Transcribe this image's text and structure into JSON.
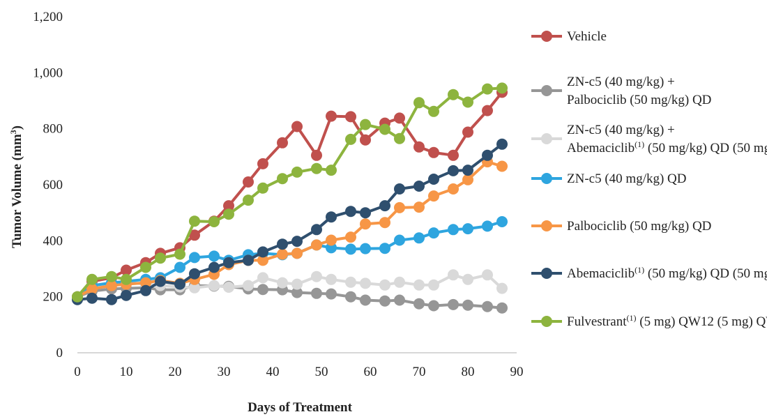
{
  "chart_data": {
    "type": "line",
    "title": "",
    "xlabel": "Days of  Treatment",
    "ylabel": "Tumor Volume (mm",
    "ylabel_superscript": "3",
    "ylabel_suffix": ")",
    "xlim": [
      0,
      90
    ],
    "ylim": [
      0,
      1200
    ],
    "xticks": [
      "0",
      "10",
      "20",
      "30",
      "40",
      "50",
      "60",
      "70",
      "80",
      "90"
    ],
    "yticks": [
      "0",
      "200",
      "400",
      "600",
      "800",
      "1,000",
      "1,200"
    ],
    "grid": false,
    "legend_position": "right",
    "series": [
      {
        "name_lines": [
          [
            "Vehicle"
          ]
        ],
        "color": "#C0504D",
        "x": [
          0,
          3,
          7,
          10,
          14,
          17,
          21,
          24,
          28,
          31,
          35,
          38,
          42,
          45,
          49,
          52,
          56,
          59,
          63,
          66,
          70,
          73,
          77,
          80,
          84,
          87
        ],
        "values": [
          200,
          255,
          268,
          295,
          322,
          355,
          375,
          420,
          470,
          525,
          610,
          675,
          750,
          808,
          705,
          845,
          843,
          760,
          820,
          838,
          735,
          715,
          705,
          788,
          865,
          930
        ]
      },
      {
        "name_lines": [
          [
            "ZN-c5 (40 mg/kg) +"
          ],
          [
            "Palbociclib (50 mg/kg) QD"
          ]
        ],
        "color": "#969696",
        "x": [
          0,
          3,
          7,
          10,
          14,
          17,
          21,
          24,
          28,
          31,
          35,
          38,
          42,
          45,
          49,
          52,
          56,
          59,
          63,
          66,
          70,
          73,
          77,
          80,
          84,
          87
        ],
        "values": [
          200,
          220,
          228,
          230,
          232,
          225,
          225,
          240,
          238,
          237,
          228,
          226,
          225,
          215,
          212,
          210,
          200,
          188,
          185,
          188,
          175,
          168,
          172,
          170,
          165,
          160
        ]
      },
      {
        "name_lines": [
          [
            "ZN-c5 (40 mg/kg) +"
          ],
          [
            "Abemaciclib",
            {
              "sup": "(1)"
            },
            " (50 mg/kg) QD"
          ]
        ],
        "color": "#D9D9D9",
        "x": [
          0,
          3,
          7,
          10,
          14,
          17,
          21,
          24,
          28,
          31,
          35,
          38,
          42,
          45,
          49,
          52,
          56,
          59,
          63,
          66,
          70,
          73,
          77,
          80,
          84,
          87
        ],
        "values": [
          200,
          230,
          248,
          252,
          245,
          240,
          235,
          232,
          240,
          234,
          240,
          268,
          250,
          245,
          272,
          262,
          252,
          248,
          242,
          252,
          242,
          242,
          278,
          262,
          278,
          230
        ]
      },
      {
        "name_lines": [
          [
            "ZN-c5 (40 mg/kg) QD"
          ]
        ],
        "color": "#2EA5DF",
        "x": [
          0,
          3,
          7,
          10,
          14,
          17,
          21,
          24,
          28,
          31,
          35,
          38,
          42,
          45,
          49,
          52,
          56,
          59,
          63,
          66,
          70,
          73,
          77,
          80,
          84,
          87
        ],
        "values": [
          200,
          240,
          250,
          255,
          262,
          268,
          305,
          340,
          345,
          330,
          350,
          355,
          350,
          355,
          385,
          375,
          370,
          372,
          373,
          402,
          410,
          428,
          440,
          443,
          452,
          468
        ]
      },
      {
        "name_lines": [
          [
            "Palbociclib (50 mg/kg) QD"
          ]
        ],
        "color": "#F79646",
        "x": [
          0,
          3,
          7,
          10,
          14,
          17,
          21,
          24,
          28,
          31,
          35,
          38,
          42,
          45,
          49,
          52,
          56,
          59,
          63,
          66,
          70,
          73,
          77,
          80,
          84,
          87
        ],
        "values": [
          200,
          228,
          240,
          245,
          250,
          258,
          248,
          262,
          280,
          315,
          330,
          330,
          352,
          355,
          385,
          402,
          413,
          460,
          465,
          518,
          520,
          560,
          585,
          618,
          682,
          666
        ]
      },
      {
        "name_lines": [
          [
            "Abemaciclib",
            {
              "sup": "(1)"
            },
            " (50 mg/kg) QD"
          ]
        ],
        "color": "#2F4F6E",
        "x": [
          0,
          3,
          7,
          10,
          14,
          17,
          21,
          24,
          28,
          31,
          35,
          38,
          42,
          45,
          49,
          52,
          56,
          59,
          63,
          66,
          70,
          73,
          77,
          80,
          84,
          87
        ],
        "values": [
          190,
          195,
          190,
          205,
          222,
          255,
          245,
          282,
          305,
          322,
          330,
          360,
          388,
          398,
          440,
          485,
          505,
          500,
          525,
          585,
          595,
          620,
          650,
          652,
          705,
          745
        ]
      },
      {
        "name_lines": [
          [
            "Fulvestrant",
            {
              "sup": "(1)"
            },
            " (5 mg) QW12"
          ]
        ],
        "color": "#8DB43E",
        "x": [
          0,
          3,
          7,
          10,
          14,
          17,
          21,
          24,
          28,
          31,
          35,
          38,
          42,
          45,
          49,
          52,
          56,
          59,
          63,
          66,
          70,
          73,
          77,
          80,
          84,
          87
        ],
        "values": [
          200,
          262,
          272,
          262,
          305,
          338,
          352,
          470,
          468,
          495,
          545,
          588,
          622,
          645,
          658,
          652,
          762,
          815,
          798,
          765,
          893,
          862,
          922,
          895,
          942,
          945
        ]
      }
    ]
  }
}
